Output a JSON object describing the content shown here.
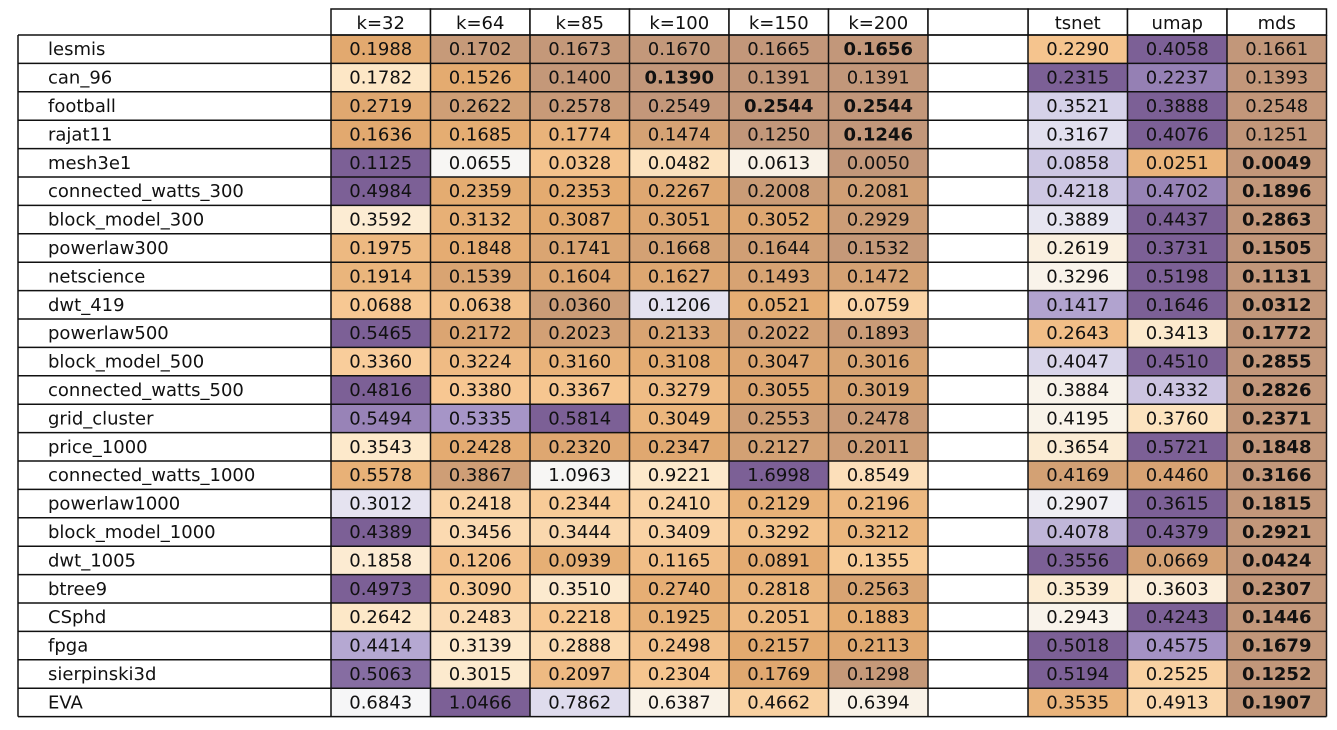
{
  "chart_data": {
    "type": "table",
    "columns_k": [
      "k=32",
      "k=64",
      "k=85",
      "k=100",
      "k=150",
      "k=200"
    ],
    "columns_methods": [
      "tsnet",
      "umap",
      "mds"
    ],
    "rows": [
      "lesmis",
      "can_96",
      "football",
      "rajat11",
      "mesh3e1",
      "connected_watts_300",
      "block_model_300",
      "powerlaw300",
      "netscience",
      "dwt_419",
      "powerlaw500",
      "block_model_500",
      "connected_watts_500",
      "grid_cluster",
      "price_1000",
      "connected_watts_1000",
      "powerlaw1000",
      "block_model_1000",
      "dwt_1005",
      "btree9",
      "CSphd",
      "fpga",
      "sierpinski3d",
      "EVA"
    ],
    "values": [
      [
        "0.1988",
        "0.1702",
        "0.1673",
        "0.1670",
        "0.1665",
        "0.1656",
        "0.2290",
        "0.4058",
        "0.1661"
      ],
      [
        "0.1782",
        "0.1526",
        "0.1400",
        "0.1390",
        "0.1391",
        "0.1391",
        "0.2315",
        "0.2237",
        "0.1393"
      ],
      [
        "0.2719",
        "0.2622",
        "0.2578",
        "0.2549",
        "0.2544",
        "0.2544",
        "0.3521",
        "0.3888",
        "0.2548"
      ],
      [
        "0.1636",
        "0.1685",
        "0.1774",
        "0.1474",
        "0.1250",
        "0.1246",
        "0.3167",
        "0.4076",
        "0.1251"
      ],
      [
        "0.1125",
        "0.0655",
        "0.0328",
        "0.0482",
        "0.0613",
        "0.0050",
        "0.0858",
        "0.0251",
        "0.0049"
      ],
      [
        "0.4984",
        "0.2359",
        "0.2353",
        "0.2267",
        "0.2008",
        "0.2081",
        "0.4218",
        "0.4702",
        "0.1896"
      ],
      [
        "0.3592",
        "0.3132",
        "0.3087",
        "0.3051",
        "0.3052",
        "0.2929",
        "0.3889",
        "0.4437",
        "0.2863"
      ],
      [
        "0.1975",
        "0.1848",
        "0.1741",
        "0.1668",
        "0.1644",
        "0.1532",
        "0.2619",
        "0.3731",
        "0.1505"
      ],
      [
        "0.1914",
        "0.1539",
        "0.1604",
        "0.1627",
        "0.1493",
        "0.1472",
        "0.3296",
        "0.5198",
        "0.1131"
      ],
      [
        "0.0688",
        "0.0638",
        "0.0360",
        "0.1206",
        "0.0521",
        "0.0759",
        "0.1417",
        "0.1646",
        "0.0312"
      ],
      [
        "0.5465",
        "0.2172",
        "0.2023",
        "0.2133",
        "0.2022",
        "0.1893",
        "0.2643",
        "0.3413",
        "0.1772"
      ],
      [
        "0.3360",
        "0.3224",
        "0.3160",
        "0.3108",
        "0.3047",
        "0.3016",
        "0.4047",
        "0.4510",
        "0.2855"
      ],
      [
        "0.4816",
        "0.3380",
        "0.3367",
        "0.3279",
        "0.3055",
        "0.3019",
        "0.3884",
        "0.4332",
        "0.2826"
      ],
      [
        "0.5494",
        "0.5335",
        "0.5814",
        "0.3049",
        "0.2553",
        "0.2478",
        "0.4195",
        "0.3760",
        "0.2371"
      ],
      [
        "0.3543",
        "0.2428",
        "0.2320",
        "0.2347",
        "0.2127",
        "0.2011",
        "0.3654",
        "0.5721",
        "0.1848"
      ],
      [
        "0.5578",
        "0.3867",
        "1.0963",
        "0.9221",
        "1.6998",
        "0.8549",
        "0.4169",
        "0.4460",
        "0.3166"
      ],
      [
        "0.3012",
        "0.2418",
        "0.2344",
        "0.2410",
        "0.2129",
        "0.2196",
        "0.2907",
        "0.3615",
        "0.1815"
      ],
      [
        "0.4389",
        "0.3456",
        "0.3444",
        "0.3409",
        "0.3292",
        "0.3212",
        "0.4078",
        "0.4379",
        "0.2921"
      ],
      [
        "0.1858",
        "0.1206",
        "0.0939",
        "0.1165",
        "0.0891",
        "0.1355",
        "0.3556",
        "0.0669",
        "0.0424"
      ],
      [
        "0.4973",
        "0.3090",
        "0.3510",
        "0.2740",
        "0.2818",
        "0.2563",
        "0.3539",
        "0.3603",
        "0.2307"
      ],
      [
        "0.2642",
        "0.2483",
        "0.2218",
        "0.1925",
        "0.2051",
        "0.1883",
        "0.2943",
        "0.4243",
        "0.1446"
      ],
      [
        "0.4414",
        "0.3139",
        "0.2888",
        "0.2498",
        "0.2157",
        "0.2113",
        "0.5018",
        "0.4575",
        "0.1679"
      ],
      [
        "0.5063",
        "0.3015",
        "0.2097",
        "0.2304",
        "0.1769",
        "0.1298",
        "0.5194",
        "0.2525",
        "0.1252"
      ],
      [
        "0.6843",
        "1.0466",
        "0.7862",
        "0.6387",
        "0.4662",
        "0.6394",
        "0.3535",
        "0.4913",
        "0.1907"
      ]
    ],
    "colormap": [
      "#7c6096",
      "#a796c8",
      "#dbd8ec",
      "#f7f7f7",
      "#fde8c8",
      "#f8c994",
      "#e3aa6f",
      "#c2977a"
    ],
    "grid": true,
    "bold_style": "bold marks the row minimum"
  }
}
